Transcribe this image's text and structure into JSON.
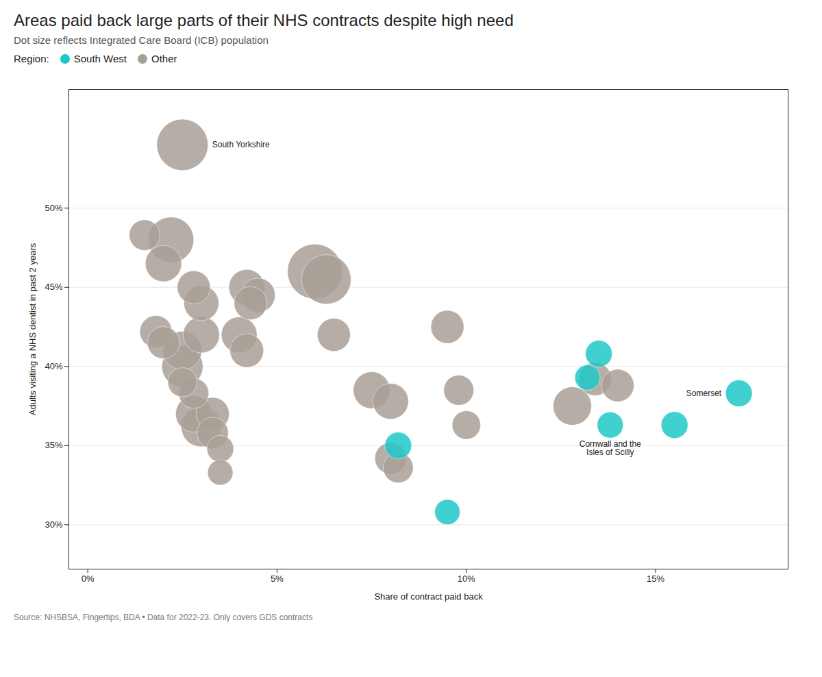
{
  "chart_data": {
    "type": "scatter",
    "title": "Areas paid back large parts of their NHS contracts despite high need",
    "subtitle": "Dot size reflects Integrated Care Board (ICB) population",
    "xlabel": "Share of contract paid back",
    "ylabel": "Adults visiting a NHS dentist in past 2 years",
    "source": "Source: NHSBSA, Fingertips, BDA • Data for 2022-23. Only covers GDS contracts",
    "legend_title": "Region:",
    "legend": "top",
    "grid": "y",
    "xlim": [
      -0.005,
      0.185
    ],
    "ylim": [
      0.272,
      0.575
    ],
    "xticks": [
      {
        "value": 0.0,
        "label": "0%"
      },
      {
        "value": 0.05,
        "label": "5%"
      },
      {
        "value": 0.1,
        "label": "10%"
      },
      {
        "value": 0.15,
        "label": "15%"
      }
    ],
    "yticks": [
      {
        "value": 0.3,
        "label": "30%"
      },
      {
        "value": 0.35,
        "label": "35%"
      },
      {
        "value": 0.4,
        "label": "40%"
      },
      {
        "value": 0.45,
        "label": "45%"
      },
      {
        "value": 0.5,
        "label": "50%"
      }
    ],
    "series": [
      {
        "name": "South West",
        "color": "#1ec8c8",
        "x": [
          0.082,
          0.095,
          0.135,
          0.132,
          0.138,
          0.155,
          0.172
        ],
        "y": [
          0.35,
          0.308,
          0.408,
          0.393,
          0.363,
          0.363,
          0.383
        ],
        "sizes": [
          380000,
          340000,
          380000,
          340000,
          360000,
          380000,
          380000
        ],
        "labels": [
          null,
          null,
          null,
          null,
          "Cornwall and the\nIsles of Scilly",
          null,
          "Somerset"
        ]
      },
      {
        "name": "Other",
        "color": "#a89f96",
        "x": [
          0.025,
          0.015,
          0.022,
          0.02,
          0.018,
          0.02,
          0.025,
          0.028,
          0.03,
          0.03,
          0.025,
          0.025,
          0.028,
          0.028,
          0.03,
          0.033,
          0.033,
          0.035,
          0.035,
          0.04,
          0.042,
          0.042,
          0.043,
          0.045,
          0.06,
          0.063,
          0.065,
          0.075,
          0.08,
          0.08,
          0.082,
          0.095,
          0.098,
          0.1,
          0.128,
          0.134,
          0.14
        ],
        "y": [
          0.54,
          0.483,
          0.48,
          0.465,
          0.422,
          0.415,
          0.41,
          0.45,
          0.44,
          0.42,
          0.4,
          0.39,
          0.383,
          0.37,
          0.362,
          0.37,
          0.358,
          0.348,
          0.333,
          0.42,
          0.41,
          0.45,
          0.44,
          0.445,
          0.46,
          0.455,
          0.42,
          0.385,
          0.378,
          0.342,
          0.336,
          0.425,
          0.385,
          0.363,
          0.375,
          0.392,
          0.388
        ],
        "sizes": [
          1400000,
          500000,
          1100000,
          700000,
          550000,
          550000,
          800000,
          580000,
          650000,
          700000,
          900000,
          450000,
          480000,
          700000,
          870000,
          580000,
          520000,
          380000,
          340000,
          680000,
          600000,
          680000,
          580000,
          620000,
          1600000,
          1300000,
          580000,
          720000,
          680000,
          530000,
          480000,
          580000,
          480000,
          430000,
          780000,
          580000,
          560000
        ],
        "labels": [
          "South Yorkshire",
          null,
          null,
          null,
          null,
          null,
          null,
          null,
          null,
          null,
          null,
          null,
          null,
          null,
          null,
          null,
          null,
          null,
          null,
          null,
          null,
          null,
          null,
          null,
          null,
          null,
          null,
          null,
          null,
          null,
          null,
          null,
          null,
          null,
          null,
          null,
          null
        ]
      }
    ]
  }
}
